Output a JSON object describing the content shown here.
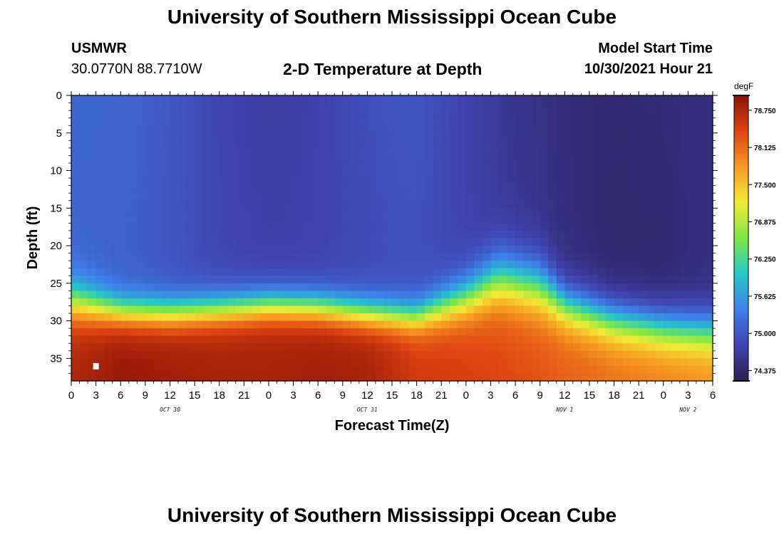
{
  "header": {
    "title": "University of Southern Mississippi Ocean Cube",
    "station": "USMWR",
    "coordinates": "30.0770N  88.7710W",
    "model_start_label": "Model Start Time",
    "model_start_value": "10/30/2021 Hour 21"
  },
  "footer": {
    "title": "University of Southern Mississippi Ocean Cube"
  },
  "chart_data": {
    "type": "heatmap",
    "title": "2-D Temperature at Depth",
    "xlabel": "Forecast Time(Z)",
    "ylabel": "Depth (ft)",
    "x_ticks": [
      "0",
      "3",
      "6",
      "9",
      "12",
      "15",
      "18",
      "21",
      "0",
      "3",
      "6",
      "9",
      "12",
      "15",
      "18",
      "21",
      "0",
      "3",
      "6",
      "9",
      "12",
      "15",
      "18",
      "21",
      "0",
      "3",
      "6"
    ],
    "x_range_hours": [
      0,
      78
    ],
    "y_ticks": [
      "0",
      "5",
      "10",
      "15",
      "20",
      "25",
      "30",
      "35"
    ],
    "y_range_ft": [
      0,
      38
    ],
    "y_inverted": true,
    "date_labels": [
      {
        "label": "OCT 30",
        "hour": 12
      },
      {
        "label": "OCT 31",
        "hour": 36
      },
      {
        "label": "NOV 1",
        "hour": 60
      },
      {
        "label": "NOV 2",
        "hour": 75
      }
    ],
    "colorbar": {
      "unit": "degF",
      "range": [
        74.2,
        79.0
      ],
      "ticks": [
        "78.750",
        "78.125",
        "77.500",
        "76.875",
        "76.250",
        "75.625",
        "75.000",
        "74.375"
      ],
      "colors": [
        "#2b1e52",
        "#3f43b0",
        "#3e80ea",
        "#24c8c8",
        "#7be846",
        "#f2ea35",
        "#f79a22",
        "#dd4411",
        "#8a1206"
      ]
    },
    "grid_resolution": {
      "hour_step": 1,
      "depth_step_ft": 1
    },
    "profiles": [
      {
        "hour": 0,
        "surface": 75.15,
        "thermocline_ft": 27.5,
        "thickness_ft": 4.0,
        "bottom": 78.75
      },
      {
        "hour": 6,
        "surface": 75.05,
        "thermocline_ft": 28.8,
        "thickness_ft": 3.0,
        "bottom": 78.9
      },
      {
        "hour": 12,
        "surface": 74.95,
        "thermocline_ft": 29.0,
        "thickness_ft": 3.0,
        "bottom": 78.85
      },
      {
        "hour": 18,
        "surface": 74.85,
        "thermocline_ft": 28.5,
        "thickness_ft": 3.0,
        "bottom": 78.8
      },
      {
        "hour": 24,
        "surface": 74.8,
        "thermocline_ft": 28.0,
        "thickness_ft": 3.0,
        "bottom": 78.8
      },
      {
        "hour": 30,
        "surface": 74.8,
        "thermocline_ft": 28.2,
        "thickness_ft": 3.0,
        "bottom": 78.85
      },
      {
        "hour": 36,
        "surface": 74.85,
        "thermocline_ft": 29.0,
        "thickness_ft": 3.0,
        "bottom": 78.8
      },
      {
        "hour": 42,
        "surface": 74.9,
        "thermocline_ft": 29.5,
        "thickness_ft": 3.0,
        "bottom": 78.5
      },
      {
        "hour": 48,
        "surface": 74.8,
        "thermocline_ft": 27.0,
        "thickness_ft": 4.0,
        "bottom": 78.45
      },
      {
        "hour": 52,
        "surface": 74.7,
        "thermocline_ft": 24.5,
        "thickness_ft": 5.0,
        "bottom": 78.4
      },
      {
        "hour": 57,
        "surface": 74.6,
        "thermocline_ft": 25.5,
        "thickness_ft": 5.0,
        "bottom": 78.3
      },
      {
        "hour": 60,
        "surface": 74.5,
        "thermocline_ft": 28.0,
        "thickness_ft": 4.0,
        "bottom": 78.2
      },
      {
        "hour": 66,
        "surface": 74.35,
        "thermocline_ft": 30.0,
        "thickness_ft": 4.0,
        "bottom": 78.1
      },
      {
        "hour": 72,
        "surface": 74.35,
        "thermocline_ft": 31.0,
        "thickness_ft": 4.0,
        "bottom": 78.0
      },
      {
        "hour": 78,
        "surface": 74.5,
        "thermocline_ft": 31.5,
        "thickness_ft": 4.0,
        "bottom": 77.9
      }
    ],
    "marker": {
      "hour": 3,
      "depth_ft": 36
    }
  }
}
